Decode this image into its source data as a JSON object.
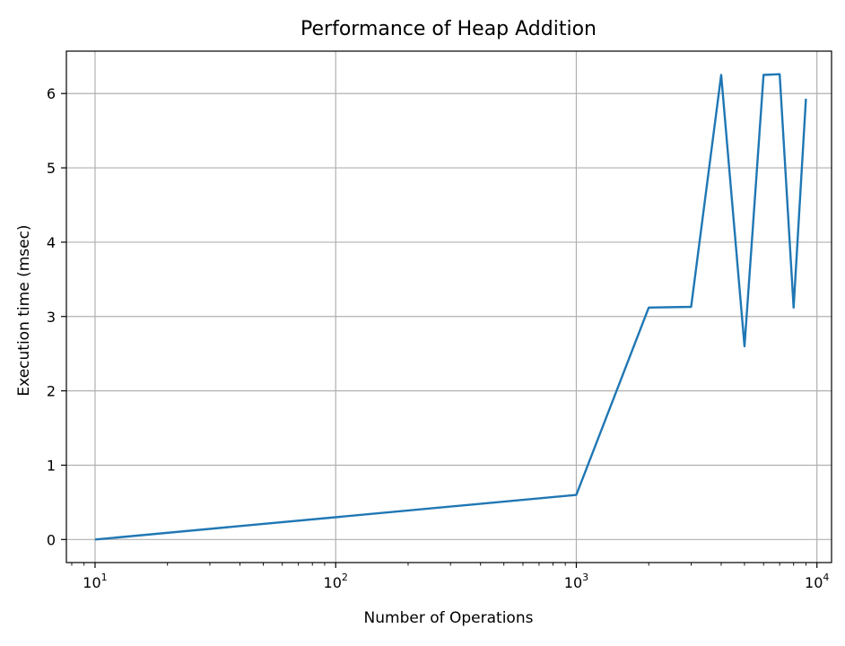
{
  "chart_data": {
    "type": "line",
    "title": "Performance of Heap Addition",
    "xlabel": "Number of Operations",
    "ylabel": "Execution time (msec)",
    "x_scale": "log",
    "xlim": [
      7.6,
      11500
    ],
    "ylim": [
      -0.31,
      6.57
    ],
    "grid": true,
    "x_ticks": [
      {
        "value": 10,
        "base": "10",
        "exp": "1"
      },
      {
        "value": 100,
        "base": "10",
        "exp": "2"
      },
      {
        "value": 1000,
        "base": "10",
        "exp": "3"
      },
      {
        "value": 10000,
        "base": "10",
        "exp": "4"
      }
    ],
    "y_ticks": [
      0,
      1,
      2,
      3,
      4,
      5,
      6
    ],
    "series": [
      {
        "color": "#1f77b4",
        "x": [
          10,
          1000,
          2000,
          3000,
          4000,
          5000,
          6000,
          7000,
          8000,
          9000
        ],
        "y": [
          0.0,
          0.6,
          3.12,
          3.13,
          6.25,
          2.6,
          6.25,
          6.26,
          3.12,
          5.93
        ]
      }
    ]
  }
}
